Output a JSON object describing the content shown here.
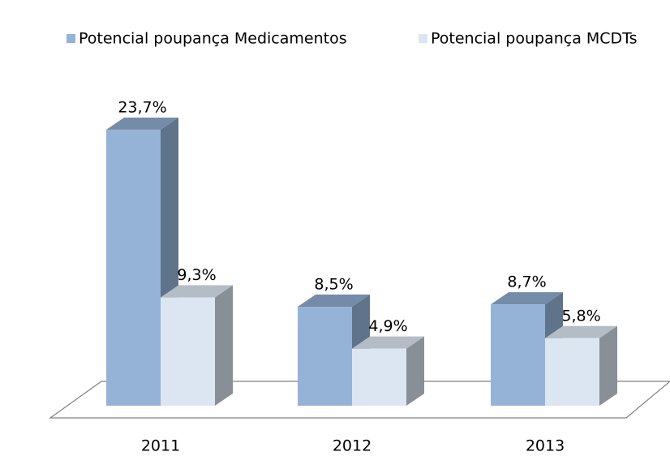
{
  "chart_data": {
    "type": "bar",
    "categories": [
      "2011",
      "2012",
      "2013"
    ],
    "series": [
      {
        "name": "Potencial poupança Medicamentos",
        "color": "#95b3d7",
        "values": [
          23.7,
          8.5,
          8.7
        ],
        "value_labels": [
          "23,7%",
          "8,5%",
          "8,7%"
        ]
      },
      {
        "name": "Potencial poupança MCDTs",
        "color": "#dce6f2",
        "values": [
          9.3,
          4.9,
          5.8
        ],
        "value_labels": [
          "9,3%",
          "4,9%",
          "5,8%"
        ]
      }
    ],
    "legend": "top"
  }
}
